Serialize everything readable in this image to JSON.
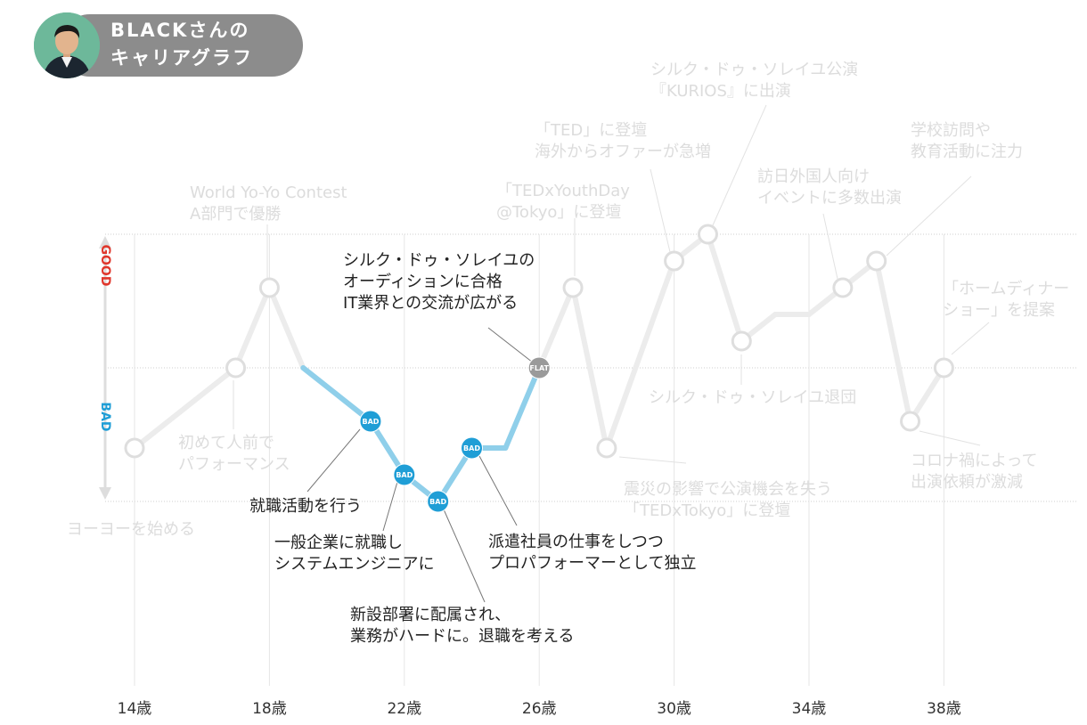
{
  "header": {
    "title_line1": "BLACKさんの",
    "title_line2": "キャリアグラフ"
  },
  "colors": {
    "bad": "#1f9ed6",
    "bad_line": "#8fcfea",
    "flat": "#9a9a9a",
    "good_label": "#e0362b",
    "bad_label": "#1f9ed6",
    "faded_line": "#ececec",
    "faded_text": "#dcdcdc",
    "axis_text": "#333333"
  },
  "chart_data": {
    "type": "line",
    "x_ticks": [
      {
        "value": 14,
        "label": "14歳"
      },
      {
        "value": 18,
        "label": "18歳"
      },
      {
        "value": 22,
        "label": "22歳"
      },
      {
        "value": 26,
        "label": "26歳"
      },
      {
        "value": 30,
        "label": "30歳"
      },
      {
        "value": 34,
        "label": "34歳"
      },
      {
        "value": 38,
        "label": "38歳"
      }
    ],
    "y_labels": {
      "good": "GOOD",
      "bad": "BAD"
    },
    "ylim": [
      -2,
      2
    ],
    "series": [
      {
        "points": [
          {
            "age": 14.0,
            "value": -1.2,
            "marker": "ring"
          },
          {
            "age": 17.0,
            "value": 0.0,
            "marker": "ring"
          },
          {
            "age": 18.0,
            "value": 1.2,
            "marker": "ring"
          },
          {
            "age": 19.0,
            "value": 0.0,
            "marker": "none"
          },
          {
            "age": 21.0,
            "value": -0.8,
            "marker": "bad",
            "badge": "BAD"
          },
          {
            "age": 22.0,
            "value": -1.6,
            "marker": "bad",
            "badge": "BAD"
          },
          {
            "age": 23.0,
            "value": -2.0,
            "marker": "bad",
            "badge": "BAD"
          },
          {
            "age": 24.0,
            "value": -1.2,
            "marker": "bad",
            "badge": "BAD"
          },
          {
            "age": 25.0,
            "value": -1.2,
            "marker": "none"
          },
          {
            "age": 26.0,
            "value": 0.0,
            "marker": "flat",
            "badge": "FLAT"
          },
          {
            "age": 27.0,
            "value": 1.2,
            "marker": "ring"
          },
          {
            "age": 28.0,
            "value": -1.2,
            "marker": "ring"
          },
          {
            "age": 30.0,
            "value": 1.6,
            "marker": "ring"
          },
          {
            "age": 31.0,
            "value": 2.0,
            "marker": "ring"
          },
          {
            "age": 32.0,
            "value": 0.4,
            "marker": "ring"
          },
          {
            "age": 33.0,
            "value": 0.8,
            "marker": "none"
          },
          {
            "age": 34.0,
            "value": 0.8,
            "marker": "none"
          },
          {
            "age": 35.0,
            "value": 1.2,
            "marker": "ring"
          },
          {
            "age": 36.0,
            "value": 1.6,
            "marker": "ring"
          },
          {
            "age": 37.0,
            "value": -0.8,
            "marker": "ring"
          },
          {
            "age": 38.0,
            "value": 0.0,
            "marker": "ring"
          }
        ]
      }
    ],
    "annotations": [
      {
        "point": 0,
        "lines": [
          "ヨーヨーを始める"
        ],
        "style": "faded"
      },
      {
        "point": 1,
        "lines": [
          "初めて人前で",
          "パフォーマンス"
        ],
        "style": "faded"
      },
      {
        "point": 2,
        "lines": [
          "World Yo-Yo Contest",
          "A部門で優勝"
        ],
        "style": "faded"
      },
      {
        "point": 4,
        "lines": [
          "就職活動を行う"
        ],
        "style": "dark"
      },
      {
        "point": 5,
        "lines": [
          "一般企業に就職し",
          "システムエンジニアに"
        ],
        "style": "dark"
      },
      {
        "point": 6,
        "lines": [
          "新設部署に配属され、",
          "業務がハードに。退職を考える"
        ],
        "style": "dark"
      },
      {
        "point": 7,
        "lines": [
          "派遣社員の仕事をしつつ",
          "プロパフォーマーとして独立"
        ],
        "style": "dark"
      },
      {
        "point": 9,
        "lines": [
          "シルク・ドゥ・ソレイユの",
          "オーディションに合格",
          "IT業界との交流が広がる"
        ],
        "style": "dark"
      },
      {
        "point": 10,
        "lines": [
          "「TEDxYouthDay",
          "@Tokyo」に登壇"
        ],
        "style": "faded"
      },
      {
        "point": 11,
        "lines": [
          "震災の影響で公演機会を失う",
          "「TEDxTokyo」に登壇"
        ],
        "style": "faded"
      },
      {
        "point": 12,
        "lines": [
          "「TED」に登壇",
          "海外からオファーが急増"
        ],
        "style": "faded"
      },
      {
        "point": 13,
        "lines": [
          "シルク・ドゥ・ソレイユ公演",
          "『KURIOS』に出演"
        ],
        "style": "faded"
      },
      {
        "point": 14,
        "lines": [
          "シルク・ドゥ・ソレイユ退団"
        ],
        "style": "faded"
      },
      {
        "point": 17,
        "lines": [
          "訪日外国人向け",
          "イベントに多数出演"
        ],
        "style": "faded"
      },
      {
        "point": 18,
        "lines": [
          "学校訪問や",
          "教育活動に注力"
        ],
        "style": "faded"
      },
      {
        "point": 19,
        "lines": [
          "コロナ禍によって",
          "出演依頼が激減"
        ],
        "style": "faded"
      },
      {
        "point": 20,
        "lines": [
          "「ホームディナー",
          "ショー」を提案"
        ],
        "style": "faded"
      }
    ]
  }
}
